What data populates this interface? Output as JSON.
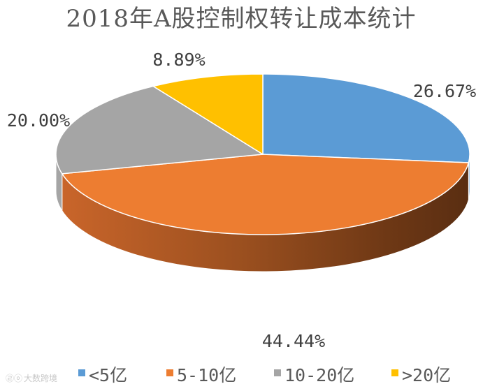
{
  "chart_data": {
    "type": "pie",
    "title": "2018年A股控制权转让成本统计",
    "categories": [
      "<5亿",
      "5-10亿",
      "10-20亿",
      ">20亿"
    ],
    "values": [
      26.67,
      44.44,
      20.0,
      8.89
    ],
    "labels": [
      "26.67%",
      "44.44%",
      "20.00%",
      "8.89%"
    ],
    "colors": [
      "#5B9BD5",
      "#ED7D31",
      "#A5A5A5",
      "#FFC000"
    ],
    "style": "3d",
    "legend": "bottom"
  },
  "watermark": "大数跨境"
}
